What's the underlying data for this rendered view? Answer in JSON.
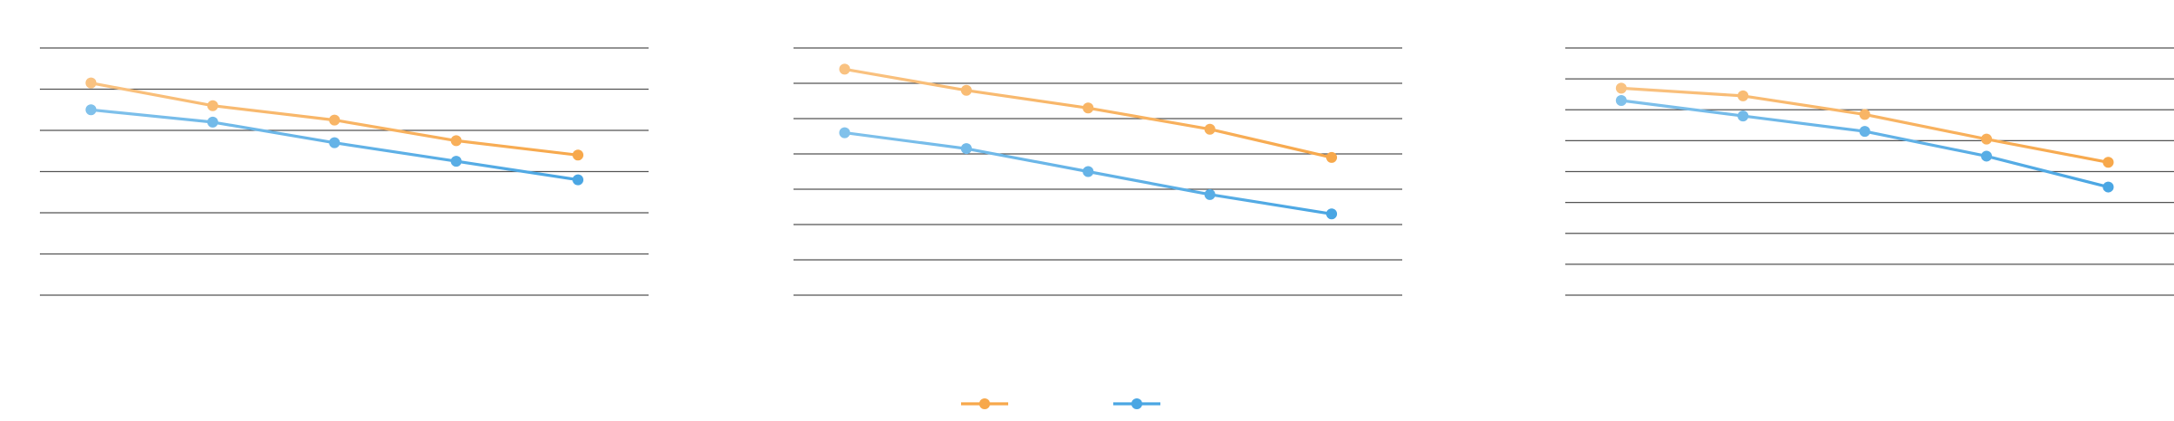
{
  "chart_data": [
    {
      "type": "line",
      "title": "",
      "xlabel": "",
      "ylabel": "",
      "x": [
        1,
        2,
        3,
        4,
        5
      ],
      "xlim": [
        0.58,
        5.58
      ],
      "ylim": [
        0,
        6
      ],
      "grid": true,
      "series": [
        {
          "color": "#f7a84b",
          "values": [
            5.15,
            4.6,
            4.25,
            3.75,
            3.4
          ]
        },
        {
          "color": "#4aa6e3",
          "values": [
            4.5,
            4.2,
            3.7,
            3.25,
            2.8
          ]
        }
      ]
    },
    {
      "type": "line",
      "title": "",
      "xlabel": "",
      "ylabel": "",
      "x": [
        1,
        2,
        3,
        4,
        5
      ],
      "xlim": [
        0.58,
        5.58
      ],
      "ylim": [
        0,
        7
      ],
      "grid": true,
      "series": [
        {
          "color": "#f7a84b",
          "values": [
            6.4,
            5.8,
            5.3,
            4.7,
            3.9
          ]
        },
        {
          "color": "#4aa6e3",
          "values": [
            4.6,
            4.15,
            3.5,
            2.85,
            2.3
          ]
        }
      ]
    },
    {
      "type": "line",
      "title": "",
      "xlabel": "",
      "ylabel": "",
      "x": [
        1,
        2,
        3,
        4,
        5
      ],
      "xlim": [
        0.54,
        5.54
      ],
      "ylim": [
        0,
        8
      ],
      "grid": true,
      "series": [
        {
          "color": "#f7a84b",
          "values": [
            6.7,
            6.45,
            5.85,
            5.05,
            4.3
          ]
        },
        {
          "color": "#4aa6e3",
          "values": [
            6.3,
            5.8,
            5.3,
            4.5,
            3.5
          ]
        }
      ]
    }
  ],
  "legend": {
    "placement": "bottom-center",
    "items": [
      {
        "label": "",
        "color": "#f7a84b"
      },
      {
        "label": "",
        "color": "#4aa6e3"
      }
    ]
  }
}
